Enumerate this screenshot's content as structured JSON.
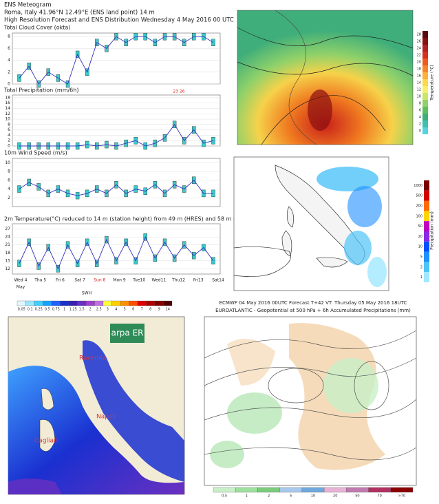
{
  "meteogram": {
    "title": "ENS Meteogram",
    "location": "Roma, Italy 41.96°N 12.49°E (ENS land point) 14 m",
    "subtitle": "High Resolution Forecast and ENS Distribution Wednesday  4 May 2016 00 UTC",
    "days": [
      "Wed 4",
      "Thu 5",
      "Fri 6",
      "Sat 7",
      "Sun 8",
      "Mon 9",
      "Tue10",
      "Wed11",
      "Thu12",
      "Fri13",
      "Sat14"
    ],
    "month": "May",
    "panels": [
      {
        "title": "Total Cloud Cover (okta)",
        "ylim": [
          0,
          8.6
        ],
        "yticks": [
          0,
          2,
          4,
          6,
          8
        ],
        "hres": [
          1,
          3,
          0,
          2,
          1,
          0,
          5,
          2,
          7,
          6,
          8,
          7,
          8,
          8,
          7,
          8,
          8,
          7,
          8,
          8,
          7
        ]
      },
      {
        "title": "Total Precipitation (mm/6h)",
        "ylim": [
          0,
          19
        ],
        "yticks": [
          0,
          2,
          4,
          6,
          8,
          10,
          12,
          14,
          16,
          18
        ],
        "hres": [
          0,
          0,
          0,
          0,
          0,
          0,
          0,
          0.5,
          0,
          0.5,
          0,
          1,
          2,
          0,
          1,
          3,
          8,
          2,
          6,
          1,
          2
        ],
        "annotation": "23 26"
      },
      {
        "title": "10m Wind Speed (m/s)",
        "ylim": [
          0,
          11
        ],
        "yticks": [
          2,
          4,
          6,
          8,
          10
        ],
        "hres": [
          4,
          5.5,
          4.5,
          3,
          4,
          3,
          2.5,
          3,
          4,
          3,
          5,
          3,
          4,
          3.5,
          5,
          3,
          5,
          4,
          6,
          3,
          3
        ]
      },
      {
        "title": "2m Temperature(°C) reduced to 14 m (station height) from 49 m (HRES) and 58 m (ENS)",
        "ylim": [
          10,
          29
        ],
        "yticks": [
          12,
          15,
          18,
          21,
          24,
          27
        ],
        "hres": [
          14,
          22,
          13,
          20,
          12,
          21,
          14,
          22,
          14,
          23,
          15,
          22,
          15,
          24,
          16,
          22,
          16,
          21,
          17,
          20,
          15
        ]
      }
    ]
  },
  "temperature_map": {
    "colorbar_title": "Temperature (°C)",
    "labels": [
      "28",
      "26",
      "24",
      "22",
      "20",
      "18",
      "16",
      "14",
      "12",
      "10",
      "8",
      "6",
      "4",
      "2",
      "0"
    ],
    "colors": [
      "#5a0a0a",
      "#8b1010",
      "#b22222",
      "#d7301f",
      "#ef5b1e",
      "#f7862a",
      "#fdb03c",
      "#fdd84a",
      "#f5f06a",
      "#c8e66a",
      "#8fd16a",
      "#5dbf5d",
      "#3fae7a",
      "#3fc0b0",
      "#55d4e0"
    ]
  },
  "precipitation_map": {
    "colorbar_title": "Precipitation (mm)",
    "labels": [
      "1000",
      "500",
      "200",
      "100",
      "50",
      "20",
      "10",
      "5",
      "2",
      "1"
    ],
    "colors": [
      "#7a0000",
      "#d40000",
      "#ff6a00",
      "#ffd400",
      "#c000c0",
      "#8a2be2",
      "#0050ff",
      "#1e90ff",
      "#4fc3f7",
      "#a0e8ff"
    ]
  },
  "wave_map": {
    "colorbar_title": "SWH",
    "labels": [
      "0.05",
      "0.1",
      "0.25",
      "0.5",
      "0.75",
      "1",
      "1.25",
      "1.5",
      "2",
      "2.5",
      "3",
      "4",
      "5",
      "6",
      "7",
      "8",
      "9",
      "14"
    ],
    "colors": [
      "#e0f7ff",
      "#9ae6ff",
      "#3fd0ff",
      "#1aa0ff",
      "#2060ff",
      "#1a30d0",
      "#3a20b0",
      "#6a30c0",
      "#a040d0",
      "#c070e0",
      "#ffff40",
      "#ffd000",
      "#ff9000",
      "#ff5000",
      "#e00000",
      "#b00000",
      "#800000",
      "#500000"
    ],
    "logo": "arpa ER",
    "cities": [
      "Ravenna",
      "Napoli",
      "Cagliari"
    ]
  },
  "ecmwf_map": {
    "title": "ECMWF 04 May 2016 00UTC Forecast T+42 VT: Thursday 05 May 2016 18UTC",
    "subtitle": "EUROATLANTIC - Geopotential at 500 hPa + 6h Accumulated Precipitations (mm)",
    "labels": [
      "0.5",
      "1",
      "2",
      "5",
      "10",
      "20",
      "50",
      "70",
      ">70"
    ],
    "colors": [
      "#c8f0c8",
      "#9ee09e",
      "#7acc7a",
      "#a8c8ec",
      "#6fa8dc",
      "#e6b3d6",
      "#c07ab0",
      "#b03060",
      "#8a0000"
    ]
  }
}
